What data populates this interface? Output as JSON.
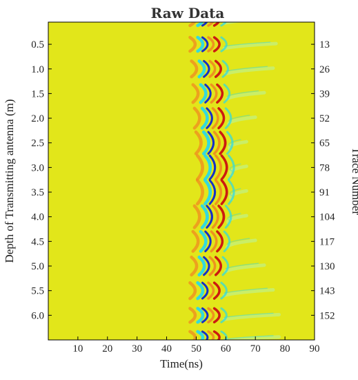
{
  "chart_data": {
    "type": "heatmap",
    "title": "Raw Data",
    "xlabel": "Time(ns)",
    "ylabel": "Depth of Transmitting antenna (m)",
    "ylabel_right": "Trace Number",
    "xlim": [
      0,
      90
    ],
    "ylim": [
      0.05,
      6.5
    ],
    "x_ticks": [
      10,
      20,
      30,
      40,
      50,
      60,
      70,
      80,
      90
    ],
    "y_ticks": [
      0.5,
      1.0,
      1.5,
      2.0,
      2.5,
      3.0,
      3.5,
      4.0,
      4.5,
      5.0,
      5.5,
      6.0
    ],
    "y_tick_labels": [
      "0.5",
      "1.0",
      "1.5",
      "2.0",
      "2.5",
      "3.0",
      "3.5",
      "4.0",
      "4.5",
      "5.0",
      "5.5",
      "6.0"
    ],
    "right_ticks": [
      {
        "depth": 0.5,
        "trace": "13"
      },
      {
        "depth": 1.0,
        "trace": "26"
      },
      {
        "depth": 1.5,
        "trace": "39"
      },
      {
        "depth": 2.0,
        "trace": "52"
      },
      {
        "depth": 2.5,
        "trace": "65"
      },
      {
        "depth": 3.0,
        "trace": "78"
      },
      {
        "depth": 3.5,
        "trace": "91"
      },
      {
        "depth": 4.0,
        "trace": "104"
      },
      {
        "depth": 4.5,
        "trace": "117"
      },
      {
        "depth": 5.0,
        "trace": "130"
      },
      {
        "depth": 5.5,
        "trace": "143"
      },
      {
        "depth": 6.0,
        "trace": "152"
      }
    ],
    "colors": {
      "background": "#e2e61a",
      "positive": "#cc1a10",
      "positive_weak": "#f08a20",
      "negative": "#1530c8",
      "negative_weak": "#2ad8e8",
      "tail": "#c8ee70"
    },
    "gathers": [
      {
        "center_depth": 0.0,
        "arrival_ns": 50.5,
        "half_extent_m": 0.12,
        "tail_to_ns": 74
      },
      {
        "center_depth": 0.5,
        "arrival_ns": 50.5,
        "half_extent_m": 0.14,
        "tail_to_ns": 77
      },
      {
        "center_depth": 1.0,
        "arrival_ns": 51.0,
        "half_extent_m": 0.16,
        "tail_to_ns": 76
      },
      {
        "center_depth": 1.5,
        "arrival_ns": 51.5,
        "half_extent_m": 0.18,
        "tail_to_ns": 73
      },
      {
        "center_depth": 2.0,
        "arrival_ns": 52.0,
        "half_extent_m": 0.2,
        "tail_to_ns": 70
      },
      {
        "center_depth": 2.5,
        "arrival_ns": 52.5,
        "half_extent_m": 0.22,
        "tail_to_ns": 67
      },
      {
        "center_depth": 3.0,
        "arrival_ns": 53.0,
        "half_extent_m": 0.24,
        "tail_to_ns": 67
      },
      {
        "center_depth": 3.5,
        "arrival_ns": 53.0,
        "half_extent_m": 0.24,
        "tail_to_ns": 67
      },
      {
        "center_depth": 4.0,
        "arrival_ns": 52.0,
        "half_extent_m": 0.22,
        "tail_to_ns": 67
      },
      {
        "center_depth": 4.5,
        "arrival_ns": 51.5,
        "half_extent_m": 0.2,
        "tail_to_ns": 70
      },
      {
        "center_depth": 5.0,
        "arrival_ns": 51.0,
        "half_extent_m": 0.18,
        "tail_to_ns": 73
      },
      {
        "center_depth": 5.5,
        "arrival_ns": 50.5,
        "half_extent_m": 0.16,
        "tail_to_ns": 76
      },
      {
        "center_depth": 6.0,
        "arrival_ns": 50.5,
        "half_extent_m": 0.14,
        "tail_to_ns": 78
      },
      {
        "center_depth": 6.45,
        "arrival_ns": 50.5,
        "half_extent_m": 0.12,
        "tail_to_ns": 78
      }
    ]
  }
}
